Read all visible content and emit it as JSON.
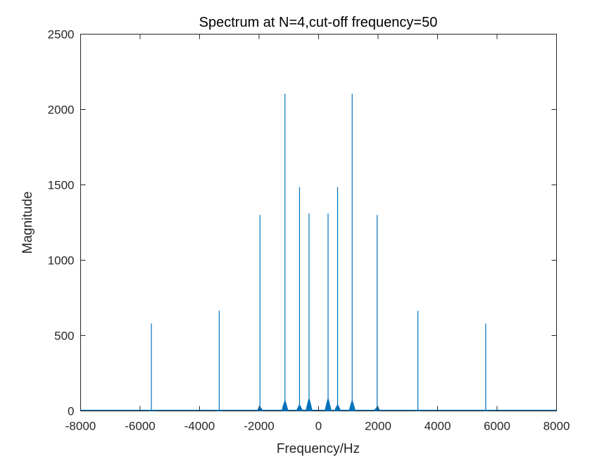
{
  "chart_data": {
    "type": "line",
    "title": "Spectrum at N=4,cut-off frequency=50",
    "xlabel": "Frequency/Hz",
    "ylabel": "Magnitude",
    "xlim": [
      -8000,
      8000
    ],
    "ylim": [
      0,
      2500
    ],
    "grid": false,
    "legend": "none",
    "x_ticks": [
      {
        "value": -8000,
        "label": "-8000"
      },
      {
        "value": -6000,
        "label": "-6000"
      },
      {
        "value": -4000,
        "label": "-4000"
      },
      {
        "value": -2000,
        "label": "-2000"
      },
      {
        "value": 0,
        "label": "0"
      },
      {
        "value": 2000,
        "label": "2000"
      },
      {
        "value": 4000,
        "label": "4000"
      },
      {
        "value": 6000,
        "label": "6000"
      },
      {
        "value": 8000,
        "label": "8000"
      }
    ],
    "y_ticks": [
      {
        "value": 0,
        "label": "0"
      },
      {
        "value": 500,
        "label": "500"
      },
      {
        "value": 1000,
        "label": "1000"
      },
      {
        "value": 1500,
        "label": "1500"
      },
      {
        "value": 2000,
        "label": "2000"
      },
      {
        "value": 2500,
        "label": "2500"
      }
    ],
    "series": [
      {
        "color": "#0072bd",
        "baseline": 5,
        "peaks": [
          {
            "x": -5620,
            "y": 580,
            "skirt": 5
          },
          {
            "x": -3340,
            "y": 665,
            "skirt": 5
          },
          {
            "x": -1970,
            "y": 1300,
            "skirt": 30
          },
          {
            "x": -1130,
            "y": 2105,
            "skirt": 75
          },
          {
            "x": -640,
            "y": 1485,
            "skirt": 45
          },
          {
            "x": -320,
            "y": 1310,
            "skirt": 90
          },
          {
            "x": 320,
            "y": 1310,
            "skirt": 90
          },
          {
            "x": 640,
            "y": 1485,
            "skirt": 45
          },
          {
            "x": 1130,
            "y": 2105,
            "skirt": 75
          },
          {
            "x": 1970,
            "y": 1300,
            "skirt": 30
          },
          {
            "x": 3340,
            "y": 665,
            "skirt": 5
          },
          {
            "x": 5620,
            "y": 580,
            "skirt": 5
          }
        ]
      }
    ]
  }
}
